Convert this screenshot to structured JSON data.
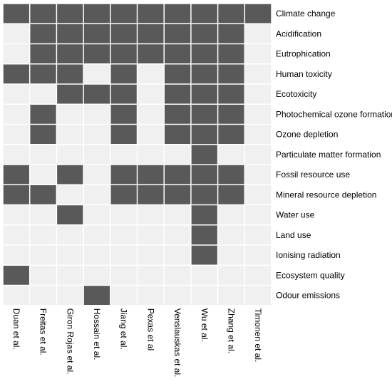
{
  "colors": {
    "filled": "#595959",
    "empty": "#f0f0f0",
    "gap": "#ffffff"
  },
  "chart_data": {
    "type": "heatmap",
    "x_labels": [
      "Duan et al.",
      "Freitas et al.",
      "Giron Rojas et al.",
      "Hossain et al.",
      "Jiang et al.",
      "Pexas et al",
      "Venslauskas et al.",
      "Wu et al.",
      "Zhang et al.",
      "Timonen et al."
    ],
    "y_labels": [
      "Climate change",
      "Acidification",
      "Eutrophication",
      "Human toxicity",
      "Ecotoxicity",
      "Photochemical ozone formation",
      "Ozone depletion",
      "Particulate matter formation",
      "Fossil resource use",
      "Mineral resource depletion",
      "Water use",
      "Land use",
      "Ionising radiation",
      "Ecosystem quality",
      "Odour emissions"
    ],
    "values": [
      [
        1,
        1,
        1,
        1,
        1,
        1,
        1,
        1,
        1,
        1
      ],
      [
        0,
        1,
        1,
        1,
        1,
        1,
        1,
        1,
        1,
        0
      ],
      [
        0,
        1,
        1,
        1,
        1,
        1,
        1,
        1,
        1,
        0
      ],
      [
        1,
        1,
        1,
        0,
        1,
        0,
        1,
        1,
        1,
        0
      ],
      [
        0,
        0,
        1,
        1,
        1,
        0,
        1,
        1,
        1,
        0
      ],
      [
        0,
        1,
        0,
        0,
        1,
        0,
        1,
        1,
        1,
        0
      ],
      [
        0,
        1,
        0,
        0,
        1,
        0,
        1,
        1,
        1,
        0
      ],
      [
        0,
        0,
        0,
        0,
        0,
        0,
        0,
        1,
        0,
        0
      ],
      [
        1,
        0,
        1,
        0,
        1,
        1,
        1,
        1,
        1,
        0
      ],
      [
        1,
        1,
        0,
        0,
        1,
        1,
        1,
        1,
        1,
        0
      ],
      [
        0,
        0,
        1,
        0,
        0,
        0,
        0,
        1,
        0,
        0
      ],
      [
        0,
        0,
        0,
        0,
        0,
        0,
        0,
        1,
        0,
        0
      ],
      [
        0,
        0,
        0,
        0,
        0,
        0,
        0,
        1,
        0,
        0
      ],
      [
        1,
        0,
        0,
        0,
        0,
        0,
        0,
        0,
        0,
        0
      ],
      [
        0,
        0,
        0,
        1,
        0,
        0,
        0,
        0,
        0,
        0
      ]
    ],
    "value_meaning": {
      "1": "filled",
      "0": "empty"
    }
  }
}
